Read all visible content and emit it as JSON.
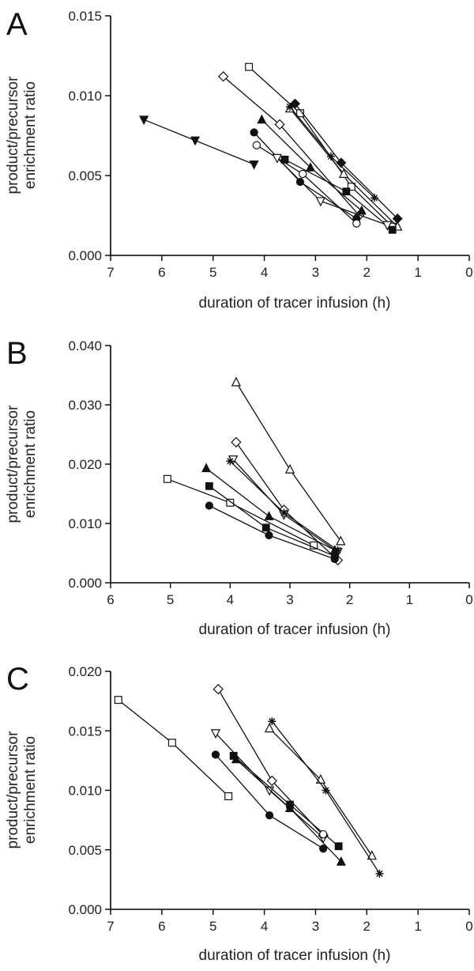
{
  "chart_data": [
    {
      "type": "scatter",
      "panel": "A",
      "xlabel": "duration of tracer infusion (h)",
      "ylabel": [
        "product/precursor",
        "enrichment ratio"
      ],
      "xlim": [
        7,
        0
      ],
      "ylim": [
        0,
        0.015
      ],
      "x_ticks": [
        "7",
        "6",
        "5",
        "4",
        "3",
        "2",
        "1",
        "0"
      ],
      "y_ticks": [
        "0.000",
        "0.005",
        "0.010",
        "0.015"
      ],
      "x_tick_values": [
        7,
        6,
        5,
        4,
        3,
        2,
        1,
        0
      ],
      "y_tick_values": [
        0,
        0.005,
        0.01,
        0.015
      ],
      "series": [
        {
          "marker": "triangle-down-filled",
          "points": [
            [
              6.35,
              0.0085
            ],
            [
              5.35,
              0.0072
            ],
            [
              4.2,
              0.0057
            ]
          ]
        },
        {
          "marker": "diamond-open",
          "points": [
            [
              4.8,
              0.0112
            ],
            [
              3.7,
              0.0082
            ],
            [
              2.15,
              0.0025
            ]
          ]
        },
        {
          "marker": "square-open",
          "points": [
            [
              4.3,
              0.0118
            ],
            [
              3.3,
              0.0089
            ],
            [
              2.3,
              0.0043
            ],
            [
              1.5,
              0.0018
            ]
          ]
        },
        {
          "marker": "diamond-filled",
          "points": [
            [
              3.4,
              0.0095
            ],
            [
              2.5,
              0.0058
            ],
            [
              1.4,
              0.0023
            ]
          ]
        },
        {
          "marker": "triangle-up-open",
          "points": [
            [
              3.5,
              0.0092
            ],
            [
              2.45,
              0.0051
            ],
            [
              1.4,
              0.0018
            ]
          ]
        },
        {
          "marker": "star",
          "points": [
            [
              3.5,
              0.0093
            ],
            [
              2.7,
              0.0062
            ],
            [
              1.85,
              0.0036
            ]
          ]
        },
        {
          "marker": "triangle-up-filled",
          "points": [
            [
              4.05,
              0.0085
            ],
            [
              3.1,
              0.0055
            ],
            [
              2.1,
              0.0028
            ]
          ]
        },
        {
          "marker": "circle-filled",
          "points": [
            [
              4.2,
              0.0077
            ],
            [
              3.3,
              0.0046
            ],
            [
              2.2,
              0.0023
            ]
          ]
        },
        {
          "marker": "circle-open",
          "points": [
            [
              4.15,
              0.0069
            ],
            [
              3.25,
              0.0051
            ],
            [
              2.2,
              0.002
            ]
          ]
        },
        {
          "marker": "square-filled",
          "points": [
            [
              3.6,
              0.006
            ],
            [
              2.4,
              0.004
            ],
            [
              1.5,
              0.0016
            ]
          ]
        },
        {
          "marker": "triangle-down-open",
          "points": [
            [
              3.75,
              0.0061
            ],
            [
              2.9,
              0.0034
            ],
            [
              1.6,
              0.0019
            ]
          ]
        }
      ]
    },
    {
      "type": "scatter",
      "panel": "B",
      "xlabel": "duration of tracer infusion (h)",
      "ylabel": [
        "product/precursor",
        "enrichment ratio"
      ],
      "xlim": [
        6,
        0
      ],
      "ylim": [
        0,
        0.04
      ],
      "x_ticks": [
        "6",
        "5",
        "4",
        "3",
        "2",
        "1",
        "0"
      ],
      "y_ticks": [
        "0.000",
        "0.010",
        "0.020",
        "0.030",
        "0.040"
      ],
      "x_tick_values": [
        6,
        5,
        4,
        3,
        2,
        1,
        0
      ],
      "y_tick_values": [
        0,
        0.01,
        0.02,
        0.03,
        0.04
      ],
      "series": [
        {
          "marker": "triangle-up-open",
          "points": [
            [
              3.9,
              0.0338
            ],
            [
              3.0,
              0.0191
            ],
            [
              2.15,
              0.007
            ]
          ]
        },
        {
          "marker": "diamond-open",
          "points": [
            [
              3.9,
              0.0237
            ],
            [
              3.1,
              0.0123
            ],
            [
              2.2,
              0.0038
            ]
          ]
        },
        {
          "marker": "triangle-down-open",
          "points": [
            [
              3.95,
              0.0208
            ],
            [
              3.1,
              0.0115
            ],
            [
              2.2,
              0.0052
            ]
          ]
        },
        {
          "marker": "star",
          "points": [
            [
              4.0,
              0.0205
            ],
            [
              3.1,
              0.0118
            ],
            [
              2.2,
              0.0055
            ]
          ]
        },
        {
          "marker": "triangle-up-filled",
          "points": [
            [
              4.4,
              0.0193
            ],
            [
              3.35,
              0.0112
            ],
            [
              2.25,
              0.0055
            ]
          ]
        },
        {
          "marker": "square-open",
          "points": [
            [
              5.05,
              0.0175
            ],
            [
              4.0,
              0.0135
            ],
            [
              2.6,
              0.0063
            ]
          ]
        },
        {
          "marker": "square-filled",
          "points": [
            [
              4.35,
              0.0163
            ],
            [
              3.4,
              0.0093
            ],
            [
              2.25,
              0.0045
            ]
          ]
        },
        {
          "marker": "circle-filled",
          "points": [
            [
              4.35,
              0.013
            ],
            [
              3.35,
              0.008
            ],
            [
              2.25,
              0.004
            ]
          ]
        }
      ]
    },
    {
      "type": "scatter",
      "panel": "C",
      "xlabel": "duration of tracer infusion (h)",
      "ylabel": [
        "product/precursor",
        "enrichment ratio"
      ],
      "xlim": [
        7,
        0
      ],
      "ylim": [
        0,
        0.02
      ],
      "x_ticks": [
        "7",
        "6",
        "5",
        "4",
        "3",
        "2",
        "1",
        "0"
      ],
      "y_ticks": [
        "0.000",
        "0.005",
        "0.010",
        "0.015",
        "0.020"
      ],
      "x_tick_values": [
        7,
        6,
        5,
        4,
        3,
        2,
        1,
        0
      ],
      "y_tick_values": [
        0,
        0.005,
        0.01,
        0.015,
        0.02
      ],
      "series": [
        {
          "marker": "square-open",
          "points": [
            [
              6.85,
              0.0176
            ],
            [
              5.8,
              0.014
            ],
            [
              4.7,
              0.0095
            ]
          ]
        },
        {
          "marker": "diamond-open",
          "points": [
            [
              4.9,
              0.0185
            ],
            [
              3.85,
              0.0108
            ],
            [
              2.85,
              0.0062
            ]
          ]
        },
        {
          "marker": "triangle-down-open",
          "points": [
            [
              4.95,
              0.0148
            ],
            [
              3.9,
              0.01
            ],
            [
              2.85,
              0.006
            ]
          ]
        },
        {
          "marker": "square-filled",
          "points": [
            [
              4.6,
              0.0129
            ],
            [
              3.5,
              0.0088
            ],
            [
              2.55,
              0.0053
            ]
          ]
        },
        {
          "marker": "triangle-up-filled",
          "points": [
            [
              4.55,
              0.0126
            ],
            [
              3.5,
              0.0085
            ],
            [
              2.5,
              0.004
            ]
          ]
        },
        {
          "marker": "circle-filled",
          "points": [
            [
              4.95,
              0.013
            ],
            [
              3.9,
              0.0079
            ],
            [
              2.85,
              0.0051
            ]
          ]
        },
        {
          "marker": "circle-open",
          "points": [
            [
              2.85,
              0.0063
            ]
          ]
        },
        {
          "marker": "triangle-up-open",
          "points": [
            [
              3.9,
              0.0152
            ],
            [
              2.9,
              0.0109
            ],
            [
              1.9,
              0.0045
            ]
          ]
        },
        {
          "marker": "star",
          "points": [
            [
              3.85,
              0.0158
            ],
            [
              2.8,
              0.01
            ],
            [
              1.75,
              0.003
            ]
          ]
        }
      ]
    }
  ]
}
